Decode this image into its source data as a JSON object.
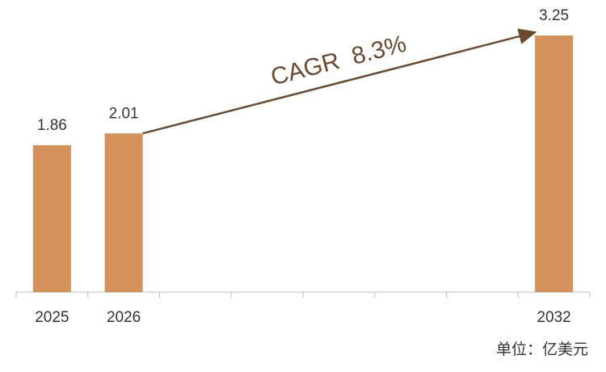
{
  "chart_data": {
    "type": "bar",
    "categories": [
      "2025",
      "2026",
      null,
      null,
      null,
      null,
      null,
      "2032"
    ],
    "values": [
      1.86,
      2.01,
      null,
      null,
      null,
      null,
      null,
      3.25
    ],
    "color": "#d4915a",
    "annotation": "CAGR  8.3%",
    "arrow_color": "#6b4a2e",
    "unit_label": "单位：亿美元"
  }
}
